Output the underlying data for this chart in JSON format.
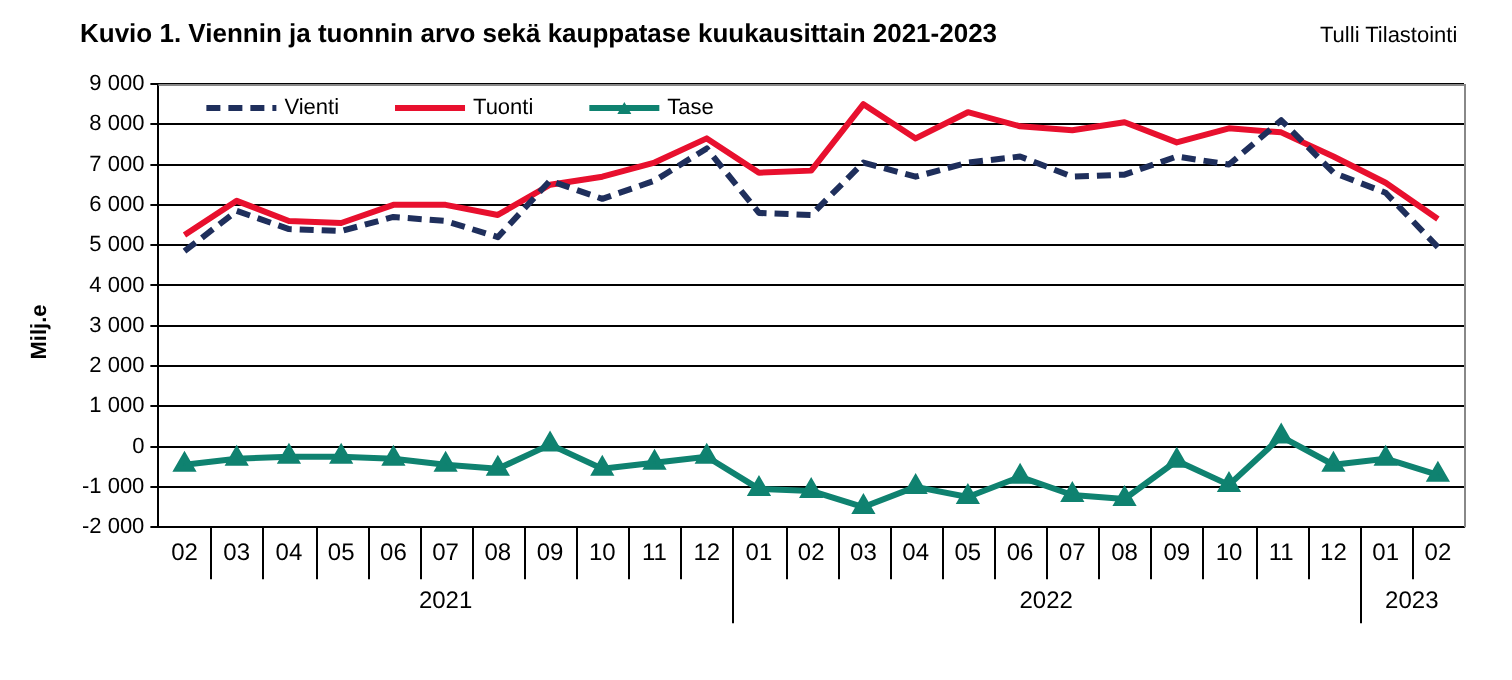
{
  "chart_data": {
    "type": "line",
    "title": "Kuvio 1. Viennin ja tuonnin arvo sekä kauppatase kuukausittain 2021-2023",
    "ylabel": "Milj.e",
    "annotations": [
      "Tulli Tilastointi",
      "2021",
      "2022",
      "2023"
    ],
    "categories": [
      "02",
      "03",
      "04",
      "05",
      "06",
      "07",
      "08",
      "09",
      "10",
      "11",
      "12",
      "01",
      "02",
      "03",
      "04",
      "05",
      "06",
      "07",
      "08",
      "09",
      "10",
      "11",
      "12",
      "01",
      "02"
    ],
    "series": [
      {
        "name": "Vienti",
        "color": "#1f2f5c",
        "line_style": "dashed",
        "marker": "none",
        "values": [
          4850,
          5850,
          5400,
          5350,
          5700,
          5600,
          5200,
          6600,
          6150,
          6600,
          7400,
          5800,
          5750,
          7050,
          6700,
          7050,
          7200,
          6700,
          6750,
          7200,
          7000,
          8100,
          6800,
          6300,
          4950
        ]
      },
      {
        "name": "Tuonti",
        "color": "#e8102e",
        "line_style": "solid",
        "marker": "none",
        "values": [
          5250,
          6100,
          5600,
          5550,
          6000,
          6000,
          5750,
          6500,
          6700,
          7050,
          7650,
          6800,
          6850,
          8500,
          7650,
          8300,
          7950,
          7850,
          8050,
          7550,
          7900,
          7800,
          7200,
          6550,
          5650
        ]
      },
      {
        "name": "Tase",
        "color": "#0f8270",
        "line_style": "solid",
        "marker": "triangle",
        "values": [
          -450,
          -300,
          -250,
          -250,
          -300,
          -450,
          -550,
          50,
          -550,
          -400,
          -250,
          -1050,
          -1100,
          -1500,
          -1000,
          -1250,
          -750,
          -1200,
          -1300,
          -350,
          -950,
          250,
          -450,
          -300,
          -700
        ]
      }
    ],
    "ylim": [
      -2000,
      9000
    ],
    "yticks": [
      {
        "value": -2000,
        "label": "-2 000"
      },
      {
        "value": -1000,
        "label": "-1 000"
      },
      0,
      {
        "value": 1000,
        "label": "1 000"
      },
      {
        "value": 2000,
        "label": "2 000"
      },
      {
        "value": 3000,
        "label": "3 000"
      },
      {
        "value": 4000,
        "label": "4 000"
      },
      {
        "value": 5000,
        "label": "5 000"
      },
      {
        "value": 6000,
        "label": "6 000"
      },
      {
        "value": 7000,
        "label": "7 000"
      },
      {
        "value": 8000,
        "label": "8 000"
      },
      {
        "value": 9000,
        "label": "9 000"
      }
    ],
    "grid": "y",
    "legend": "top left"
  }
}
